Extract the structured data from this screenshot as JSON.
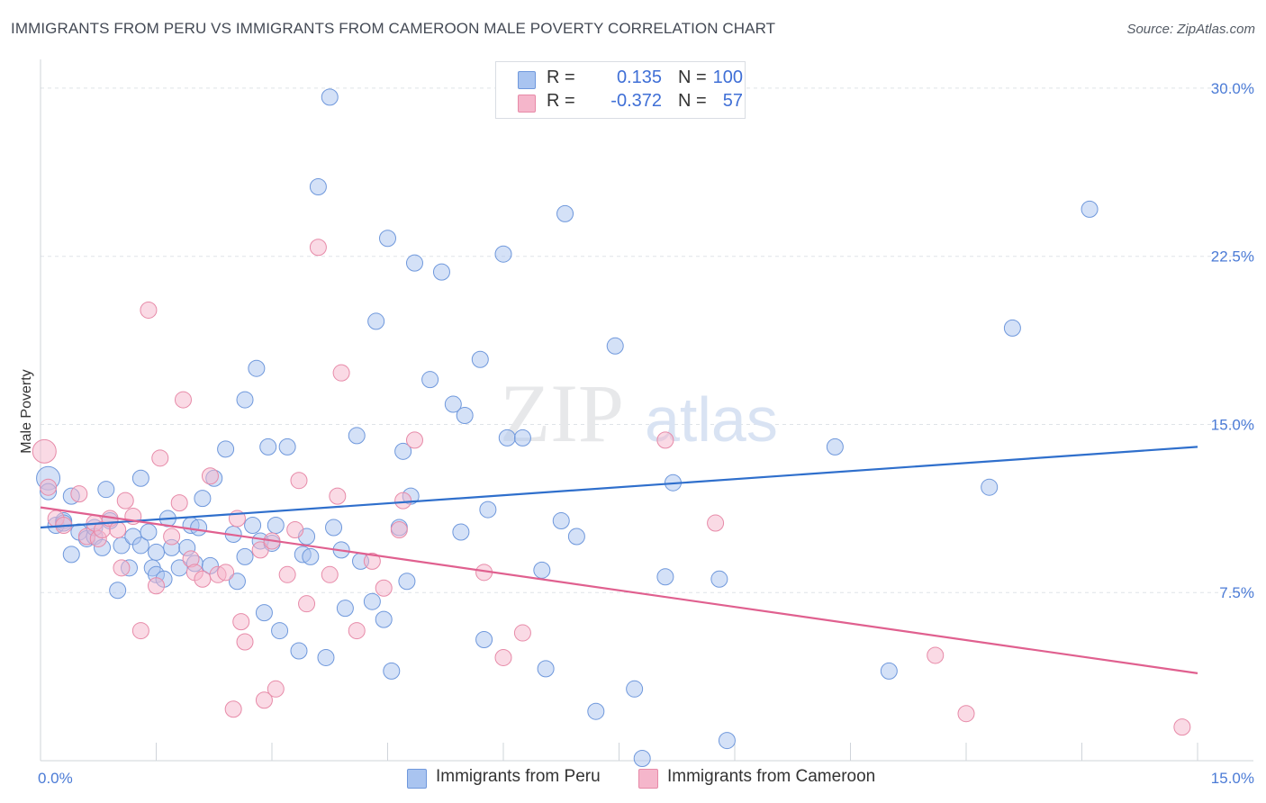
{
  "header": {
    "title": "IMMIGRANTS FROM PERU VS IMMIGRANTS FROM CAMEROON MALE POVERTY CORRELATION CHART",
    "source": "Source: ZipAtlas.com"
  },
  "watermark": {
    "zip": "ZIP",
    "atlas": "atlas"
  },
  "legend": {
    "rows": [
      {
        "r_label": "R =",
        "r_value": "0.135",
        "n_label": "N =",
        "n_value": "100",
        "color": "#a9c4f0"
      },
      {
        "r_label": "R =",
        "r_value": "-0.372",
        "n_label": "N =",
        "n_value": "57",
        "color": "#f5b6cb"
      }
    ]
  },
  "bottom_legend": {
    "peru": "Immigrants from Peru",
    "cameroon": "Immigrants from Cameroon"
  },
  "chart_data": {
    "type": "scatter",
    "ylabel": "Male Poverty",
    "xlim": [
      0,
      15
    ],
    "ylim": [
      0,
      30
    ],
    "x_tick_labels": [
      "0.0%",
      "15.0%"
    ],
    "y_ticks": [
      7.5,
      15,
      22.5,
      30
    ],
    "y_tick_labels": [
      "7.5%",
      "15.0%",
      "22.5%",
      "30.0%"
    ],
    "grid": true,
    "colors": {
      "peru_fill": "#a9c4f0",
      "peru_stroke": "#6f98dc",
      "peru_line": "#2f6fcc",
      "cameroon_fill": "#f5b6cb",
      "cameroon_stroke": "#e78aa8",
      "cameroon_line": "#e0608f",
      "tick_label": "#4b7bd6"
    },
    "series": [
      {
        "name": "Immigrants from Peru",
        "trend": {
          "x": [
            0,
            15
          ],
          "y": [
            10.4,
            14.0
          ]
        },
        "points": [
          [
            0.1,
            12.6
          ],
          [
            0.1,
            12.0
          ],
          [
            0.2,
            10.5
          ],
          [
            0.3,
            10.7
          ],
          [
            0.4,
            11.8
          ],
          [
            0.4,
            9.2
          ],
          [
            0.5,
            10.2
          ],
          [
            0.6,
            9.9
          ],
          [
            0.7,
            10.0
          ],
          [
            0.7,
            10.4
          ],
          [
            0.8,
            9.5
          ],
          [
            0.85,
            12.1
          ],
          [
            0.9,
            10.7
          ],
          [
            1.0,
            7.6
          ],
          [
            1.05,
            9.6
          ],
          [
            1.15,
            8.6
          ],
          [
            1.2,
            10.0
          ],
          [
            1.3,
            12.6
          ],
          [
            1.3,
            9.6
          ],
          [
            1.4,
            10.2
          ],
          [
            1.45,
            8.6
          ],
          [
            1.5,
            8.3
          ],
          [
            1.6,
            8.1
          ],
          [
            1.65,
            10.8
          ],
          [
            1.7,
            9.5
          ],
          [
            1.8,
            8.6
          ],
          [
            1.9,
            9.5
          ],
          [
            1.95,
            10.5
          ],
          [
            2.0,
            8.8
          ],
          [
            2.05,
            10.4
          ],
          [
            2.1,
            11.7
          ],
          [
            2.2,
            8.7
          ],
          [
            2.25,
            12.6
          ],
          [
            2.4,
            13.9
          ],
          [
            2.5,
            10.1
          ],
          [
            2.55,
            8.0
          ],
          [
            2.65,
            9.1
          ],
          [
            2.65,
            16.1
          ],
          [
            2.75,
            10.5
          ],
          [
            2.8,
            17.5
          ],
          [
            2.85,
            9.8
          ],
          [
            2.9,
            6.6
          ],
          [
            2.95,
            14.0
          ],
          [
            3.05,
            10.5
          ],
          [
            3.1,
            5.8
          ],
          [
            3.2,
            14.0
          ],
          [
            3.35,
            4.9
          ],
          [
            3.4,
            9.2
          ],
          [
            3.45,
            10.0
          ],
          [
            3.5,
            9.1
          ],
          [
            3.6,
            25.6
          ],
          [
            3.7,
            4.6
          ],
          [
            3.75,
            29.6
          ],
          [
            3.8,
            10.4
          ],
          [
            3.9,
            9.4
          ],
          [
            3.95,
            6.8
          ],
          [
            4.1,
            14.5
          ],
          [
            4.15,
            8.9
          ],
          [
            4.3,
            7.1
          ],
          [
            4.35,
            19.6
          ],
          [
            4.45,
            6.3
          ],
          [
            4.5,
            23.3
          ],
          [
            4.55,
            4.0
          ],
          [
            4.65,
            10.4
          ],
          [
            4.7,
            13.8
          ],
          [
            4.75,
            8.0
          ],
          [
            4.8,
            11.8
          ],
          [
            4.85,
            22.2
          ],
          [
            5.05,
            17.0
          ],
          [
            5.2,
            21.8
          ],
          [
            5.35,
            15.9
          ],
          [
            5.45,
            10.2
          ],
          [
            5.5,
            15.4
          ],
          [
            5.7,
            17.9
          ],
          [
            5.75,
            5.4
          ],
          [
            5.8,
            11.2
          ],
          [
            6.0,
            22.6
          ],
          [
            6.05,
            14.4
          ],
          [
            6.25,
            14.4
          ],
          [
            6.5,
            8.5
          ],
          [
            6.55,
            4.1
          ],
          [
            6.75,
            10.7
          ],
          [
            6.8,
            24.4
          ],
          [
            6.95,
            10.0
          ],
          [
            7.2,
            2.2
          ],
          [
            7.45,
            18.5
          ],
          [
            7.7,
            3.2
          ],
          [
            7.8,
            0.1
          ],
          [
            8.1,
            8.2
          ],
          [
            8.2,
            12.4
          ],
          [
            8.8,
            8.1
          ],
          [
            8.9,
            0.9
          ],
          [
            10.3,
            14.0
          ],
          [
            11.0,
            4.0
          ],
          [
            12.3,
            12.2
          ],
          [
            12.6,
            19.3
          ],
          [
            13.6,
            24.6
          ],
          [
            0.3,
            10.6
          ],
          [
            1.5,
            9.3
          ],
          [
            3.0,
            9.7
          ]
        ]
      },
      {
        "name": "Immigrants from Cameroon",
        "trend": {
          "x": [
            0,
            15
          ],
          "y": [
            11.3,
            3.9
          ]
        },
        "points": [
          [
            0.05,
            13.8
          ],
          [
            0.1,
            12.2
          ],
          [
            0.2,
            10.8
          ],
          [
            0.3,
            10.5
          ],
          [
            0.5,
            11.9
          ],
          [
            0.6,
            10.0
          ],
          [
            0.7,
            10.6
          ],
          [
            0.75,
            9.9
          ],
          [
            0.8,
            10.3
          ],
          [
            0.9,
            10.8
          ],
          [
            1.0,
            10.3
          ],
          [
            1.05,
            8.6
          ],
          [
            1.1,
            11.6
          ],
          [
            1.2,
            10.9
          ],
          [
            1.3,
            5.8
          ],
          [
            1.4,
            20.1
          ],
          [
            1.5,
            7.8
          ],
          [
            1.55,
            13.5
          ],
          [
            1.7,
            10.0
          ],
          [
            1.8,
            11.5
          ],
          [
            1.85,
            16.1
          ],
          [
            1.95,
            9.0
          ],
          [
            2.0,
            8.4
          ],
          [
            2.1,
            8.1
          ],
          [
            2.2,
            12.7
          ],
          [
            2.3,
            8.3
          ],
          [
            2.4,
            8.4
          ],
          [
            2.5,
            2.3
          ],
          [
            2.55,
            10.8
          ],
          [
            2.6,
            6.2
          ],
          [
            2.65,
            5.3
          ],
          [
            2.85,
            9.4
          ],
          [
            2.9,
            2.7
          ],
          [
            3.0,
            9.8
          ],
          [
            3.05,
            3.2
          ],
          [
            3.2,
            8.3
          ],
          [
            3.3,
            10.3
          ],
          [
            3.35,
            12.5
          ],
          [
            3.45,
            7.0
          ],
          [
            3.6,
            22.9
          ],
          [
            3.75,
            8.3
          ],
          [
            3.85,
            11.8
          ],
          [
            3.9,
            17.3
          ],
          [
            4.1,
            5.8
          ],
          [
            4.3,
            8.9
          ],
          [
            4.45,
            7.7
          ],
          [
            4.65,
            10.3
          ],
          [
            4.7,
            11.6
          ],
          [
            4.85,
            14.3
          ],
          [
            5.75,
            8.4
          ],
          [
            6.0,
            4.6
          ],
          [
            6.25,
            5.7
          ],
          [
            8.1,
            14.3
          ],
          [
            8.75,
            10.6
          ],
          [
            11.6,
            4.7
          ],
          [
            12.0,
            2.1
          ],
          [
            14.8,
            1.5
          ]
        ]
      }
    ]
  }
}
